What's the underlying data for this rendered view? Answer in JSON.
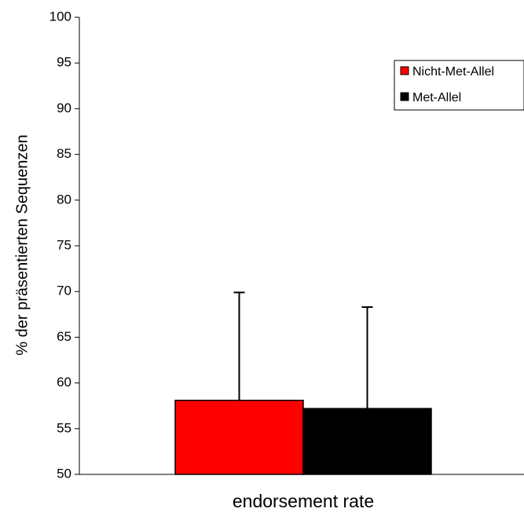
{
  "chart_data": {
    "type": "bar",
    "categories": [
      "endorsement rate"
    ],
    "series": [
      {
        "name": "Nicht-Met-Allel",
        "values": [
          58.1
        ],
        "error": [
          11.8
        ],
        "color": "#ff0000"
      },
      {
        "name": "Met-Allel",
        "values": [
          57.2
        ],
        "error": [
          11.1
        ],
        "color": "#000000"
      }
    ],
    "title": "",
    "xlabel": "",
    "ylabel": "% der präsentierten Sequenzen",
    "ylim": [
      50,
      100
    ],
    "yticks": [
      "50",
      "55",
      "60",
      "65",
      "70",
      "75",
      "80",
      "85",
      "90",
      "95",
      "100"
    ],
    "grid": false,
    "legend": "top-right"
  }
}
